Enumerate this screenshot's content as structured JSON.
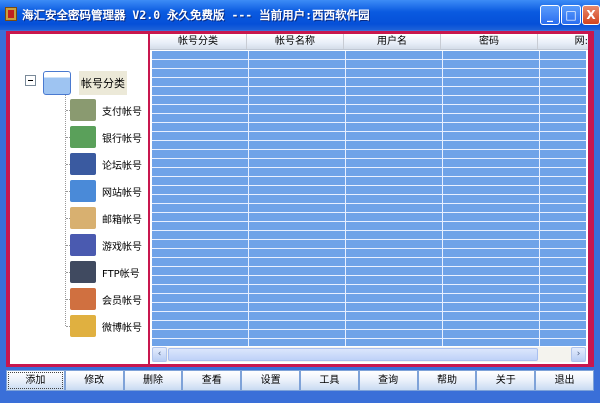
{
  "window": {
    "title": "海汇安全密码管理器 V2.0 永久免费版 --- 当前用户:西西软件园",
    "minimize": "_",
    "maximize": "□",
    "close": "X"
  },
  "tree": {
    "root": "帐号分类",
    "items": [
      {
        "label": "支付帐号",
        "icon": "calculator-icon",
        "color": "#8a9a70"
      },
      {
        "label": "银行帐号",
        "icon": "bank-card-icon",
        "color": "#5aa05a"
      },
      {
        "label": "论坛帐号",
        "icon": "forum-window-icon",
        "color": "#3a5aa0"
      },
      {
        "label": "网站帐号",
        "icon": "network-icon",
        "color": "#4a8ad8"
      },
      {
        "label": "邮箱帐号",
        "icon": "envelope-icon",
        "color": "#d8b070"
      },
      {
        "label": "游戏帐号",
        "icon": "gamepad-icon",
        "color": "#4a5ab0"
      },
      {
        "label": "FTP帐号",
        "icon": "computer-icon",
        "color": "#404a60"
      },
      {
        "label": "会员帐号",
        "icon": "users-icon",
        "color": "#d07040"
      },
      {
        "label": "微博帐号",
        "icon": "document-icon",
        "color": "#e0b040"
      }
    ]
  },
  "grid": {
    "columns": [
      "帐号分类",
      "帐号名称",
      "用户名",
      "密码",
      "网:"
    ]
  },
  "buttons": [
    "添加",
    "修改",
    "删除",
    "查看",
    "设置",
    "工具",
    "查询",
    "帮助",
    "关于",
    "退出"
  ]
}
